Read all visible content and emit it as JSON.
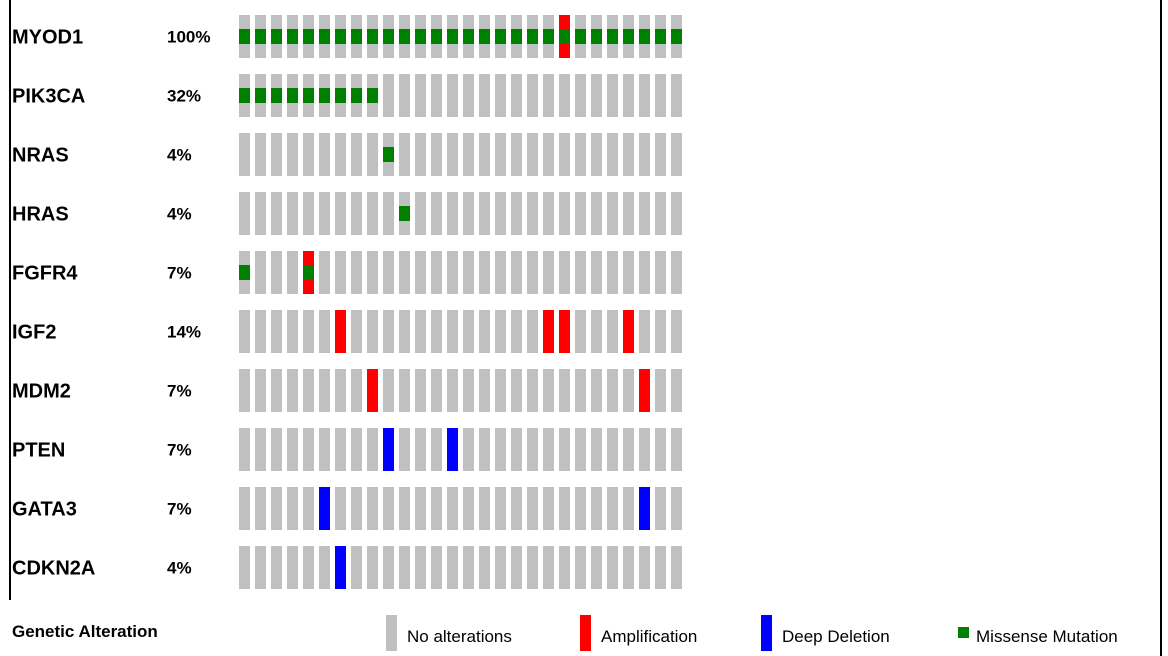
{
  "chart_data": {
    "type": "oncoprint",
    "sample_count": 28,
    "genes": [
      {
        "name": "MYOD1",
        "percent": "100%"
      },
      {
        "name": "PIK3CA",
        "percent": "32%"
      },
      {
        "name": "NRAS",
        "percent": "4%"
      },
      {
        "name": "HRAS",
        "percent": "4%"
      },
      {
        "name": "FGFR4",
        "percent": "7%"
      },
      {
        "name": "IGF2",
        "percent": "14%"
      },
      {
        "name": "MDM2",
        "percent": "7%"
      },
      {
        "name": "PTEN",
        "percent": "7%"
      },
      {
        "name": "GATA3",
        "percent": "7%"
      },
      {
        "name": "CDKN2A",
        "percent": "4%"
      }
    ],
    "alterations": [
      {
        "gene": "MYOD1",
        "missense": [
          0,
          1,
          2,
          3,
          4,
          5,
          6,
          7,
          8,
          9,
          10,
          11,
          12,
          13,
          14,
          15,
          16,
          17,
          18,
          19,
          20,
          21,
          22,
          23,
          24,
          25,
          26,
          27
        ],
        "amplification": [
          20
        ],
        "deep_deletion": []
      },
      {
        "gene": "PIK3CA",
        "missense": [
          0,
          1,
          2,
          3,
          4,
          5,
          6,
          7,
          8
        ],
        "amplification": [],
        "deep_deletion": []
      },
      {
        "gene": "NRAS",
        "missense": [
          9
        ],
        "amplification": [],
        "deep_deletion": []
      },
      {
        "gene": "HRAS",
        "missense": [
          10
        ],
        "amplification": [],
        "deep_deletion": []
      },
      {
        "gene": "FGFR4",
        "missense": [
          0,
          4
        ],
        "amplification": [
          4
        ],
        "deep_deletion": []
      },
      {
        "gene": "IGF2",
        "missense": [],
        "amplification": [
          6,
          19,
          20,
          24
        ],
        "deep_deletion": []
      },
      {
        "gene": "MDM2",
        "missense": [],
        "amplification": [
          8,
          25
        ],
        "deep_deletion": []
      },
      {
        "gene": "PTEN",
        "missense": [],
        "amplification": [],
        "deep_deletion": [
          9,
          13
        ]
      },
      {
        "gene": "GATA3",
        "missense": [],
        "amplification": [],
        "deep_deletion": [
          5,
          25
        ]
      },
      {
        "gene": "CDKN2A",
        "missense": [],
        "amplification": [],
        "deep_deletion": [
          6
        ]
      }
    ],
    "legend": {
      "title": "Genetic Alteration",
      "items": [
        {
          "key": "none",
          "label": "No alterations",
          "color": "#c0c0c0"
        },
        {
          "key": "amp",
          "label": "Amplification",
          "color": "#ff0000"
        },
        {
          "key": "del",
          "label": "Deep Deletion",
          "color": "#0000ff"
        },
        {
          "key": "mis",
          "label": "Missense Mutation",
          "color": "#008000"
        }
      ]
    }
  }
}
